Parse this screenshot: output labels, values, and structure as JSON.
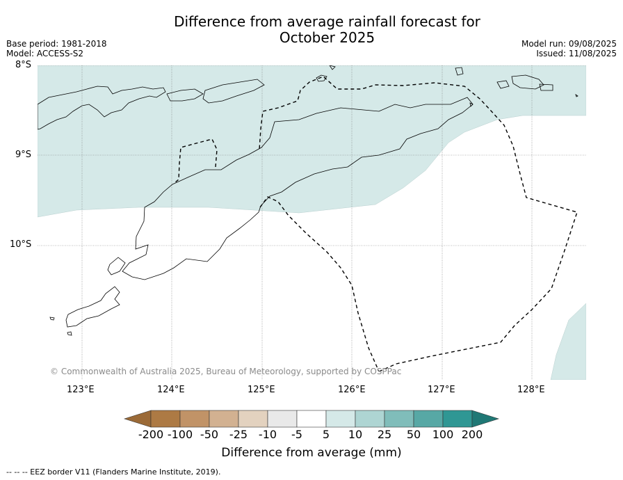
{
  "header": {
    "title_line1": "Difference from average rainfall forecast for",
    "title_line2": "October 2025",
    "base_period": "Base period: 1981-2018",
    "model": "Model: ACCESS-S2",
    "model_run": "Model run: 09/08/2025",
    "issued": "Issued: 11/08/2025"
  },
  "map": {
    "lat_labels": [
      "8°S",
      "9°S",
      "10°S"
    ],
    "lon_labels": [
      "123°E",
      "124°E",
      "125°E",
      "126°E",
      "127°E",
      "128°E"
    ],
    "copyright": "© Commonwealth of Australia 2025, Bureau of Meteorology, supported by COSPPac",
    "land_outline_color": "#000000",
    "eez_line_color": "#000000",
    "above_average_fill": "#d5e9e8"
  },
  "colorbar": {
    "title": "Difference from average (mm)",
    "ticks": [
      "-200",
      "-100",
      "-50",
      "-25",
      "-10",
      "-5",
      "5",
      "10",
      "25",
      "50",
      "100",
      "200"
    ],
    "colors": [
      "#9b6a37",
      "#ad7a44",
      "#c19367",
      "#d2b191",
      "#e3d2bf",
      "#e9e9e9",
      "#ffffff",
      "#d5e9e8",
      "#aed5d3",
      "#80bdba",
      "#57a8a5",
      "#2f9794",
      "#1f7875"
    ]
  },
  "footer": {
    "eez_note": "--  --  -- EEZ border V11 (Flanders Marine Institute, 2019)."
  }
}
